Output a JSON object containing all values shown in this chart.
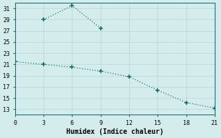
{
  "xlabel": "Humidex (Indice chaleur)",
  "bg_color": "#d4ecec",
  "grid_color": "#c8dede",
  "line_color": "#1a6e6e",
  "xlim": [
    0,
    21
  ],
  "ylim": [
    12,
    32
  ],
  "xticks": [
    0,
    3,
    6,
    9,
    12,
    15,
    18,
    21
  ],
  "yticks": [
    13,
    15,
    17,
    19,
    21,
    23,
    25,
    27,
    29,
    31
  ],
  "series1_x": [
    3,
    6,
    9
  ],
  "series1_y": [
    29,
    31.5,
    27.5
  ],
  "series2_x": [
    0,
    3,
    6,
    9,
    12,
    15,
    18,
    21
  ],
  "series2_y": [
    21.5,
    21.0,
    20.5,
    19.8,
    18.8,
    16.4,
    14.2,
    13.2
  ]
}
